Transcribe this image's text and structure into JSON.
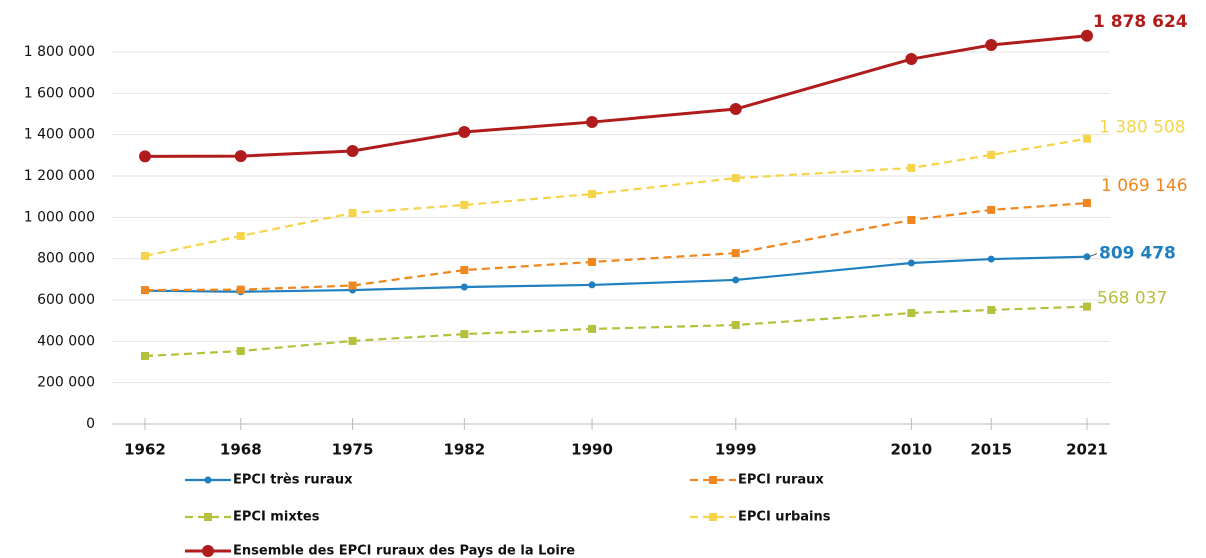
{
  "chart_data": {
    "type": "line",
    "x": [
      1962,
      1968,
      1975,
      1982,
      1990,
      1999,
      2010,
      2015,
      2021
    ],
    "xlim": [
      1962,
      2021
    ],
    "xticks": [
      1962,
      1968,
      1975,
      1982,
      1990,
      1999,
      2010,
      2015,
      2021
    ],
    "ylim": [
      0,
      1800000
    ],
    "yticks": [
      0,
      {
        "value": 200000,
        "label": "200 000"
      },
      {
        "value": 400000,
        "label": "400 000"
      },
      {
        "value": 600000,
        "label": "600 000"
      },
      {
        "value": 800000,
        "label": "800 000"
      },
      {
        "value": 1000000,
        "label": "1 000 000"
      },
      {
        "value": 1200000,
        "label": "1 200 000"
      },
      {
        "value": 1400000,
        "label": "1 400 000"
      },
      {
        "value": 1600000,
        "label": "1 600 000"
      },
      {
        "value": 1800000,
        "label": "1 800 000"
      }
    ],
    "grid": true,
    "legend": "bottom",
    "series": [
      {
        "name": "EPCI très ruraux",
        "color": "#1f7fc0",
        "dash": "solid",
        "marker": "circle",
        "values": [
          645000,
          640000,
          648000,
          663000,
          673000,
          697000,
          779000,
          798000,
          809478
        ],
        "value_labels": [
          null,
          null,
          null,
          null,
          null,
          null,
          null,
          null,
          "809 478"
        ]
      },
      {
        "name": "EPCI ruraux",
        "color": "#f0871e",
        "dash": "dashed",
        "marker": "square",
        "values": [
          648000,
          650000,
          670000,
          745000,
          784000,
          827000,
          987000,
          1036000,
          1069146
        ],
        "value_labels": [
          null,
          null,
          null,
          null,
          null,
          null,
          null,
          null,
          "1 069 146"
        ]
      },
      {
        "name": "EPCI mixtes",
        "color": "#b5c03c",
        "dash": "dashed",
        "marker": "square",
        "values": [
          329000,
          353000,
          402000,
          435000,
          460000,
          479000,
          537000,
          552000,
          568037
        ],
        "value_labels": [
          null,
          null,
          null,
          null,
          null,
          null,
          null,
          null,
          "568 037"
        ]
      },
      {
        "name": "EPCI urbains",
        "color": "#f5d44a",
        "dash": "dashed",
        "marker": "square",
        "values": [
          813000,
          910000,
          1021000,
          1060000,
          1113000,
          1190000,
          1239000,
          1302000,
          1380508
        ],
        "value_labels": [
          null,
          null,
          null,
          null,
          null,
          null,
          null,
          null,
          "1 380 508"
        ]
      },
      {
        "name": "Ensemble des EPCI ruraux des Pays de la Loire",
        "color": "#b01c1c",
        "dash": "solid",
        "marker": "circle",
        "values": [
          1295000,
          1296000,
          1321000,
          1413000,
          1461000,
          1524000,
          1766000,
          1834000,
          1878624
        ],
        "value_labels": [
          null,
          null,
          null,
          null,
          null,
          null,
          null,
          null,
          "1 878 624"
        ]
      }
    ]
  }
}
